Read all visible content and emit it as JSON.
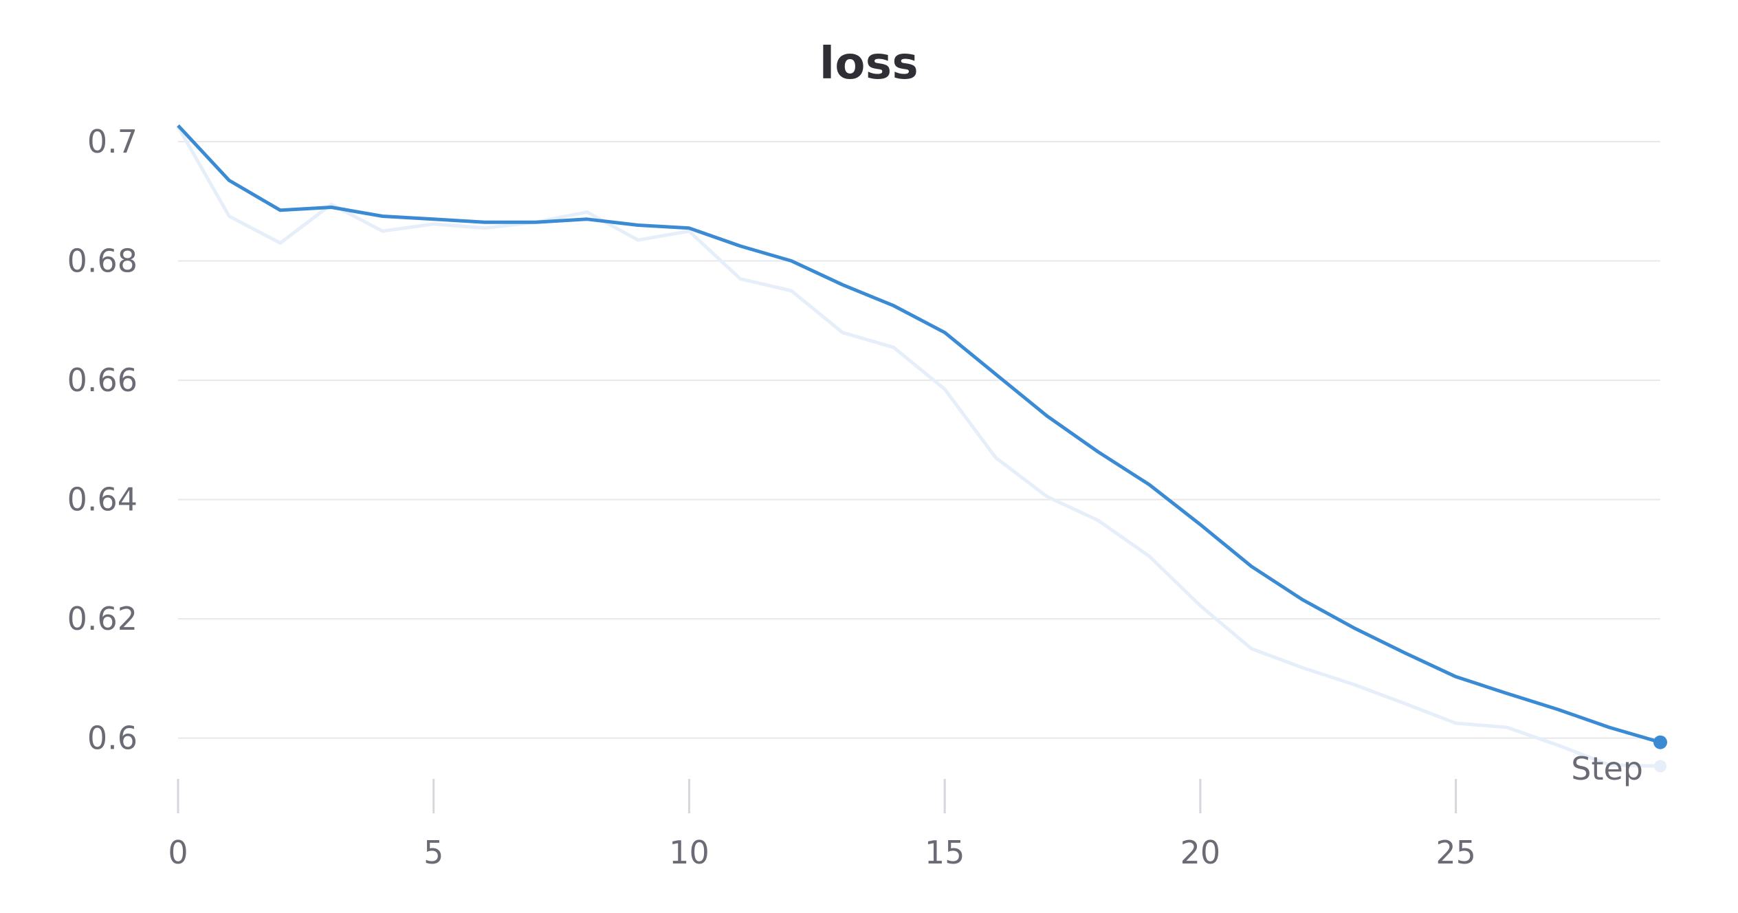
{
  "chart_data": {
    "type": "line",
    "title": "loss",
    "xlabel": "",
    "ylabel": "",
    "xlim": [
      0,
      29
    ],
    "ylim": [
      0.595,
      0.703
    ],
    "x_ticks": [
      0,
      5,
      10,
      15,
      20,
      25
    ],
    "y_ticks": [
      0.6,
      0.62,
      0.64,
      0.66,
      0.68,
      0.7
    ],
    "grid": "horizontal",
    "legend_label": "Step",
    "colors": {
      "smoothed": "#3b8bd4",
      "raw": "#e6eff9",
      "grid": "#e8e8ec",
      "tick": "#d6d6dc",
      "text": "#6b6b76",
      "title": "#2f2f35"
    },
    "series": [
      {
        "role": "raw",
        "x": [
          0,
          1,
          2,
          3,
          4,
          5,
          6,
          7,
          8,
          9,
          10,
          11,
          12,
          13,
          14,
          15,
          16,
          17,
          18,
          19,
          20,
          21,
          22,
          23,
          24,
          25,
          26,
          27,
          28,
          29
        ],
        "values": [
          0.7025,
          0.6875,
          0.683,
          0.6895,
          0.685,
          0.6862,
          0.6855,
          0.6865,
          0.6882,
          0.6835,
          0.685,
          0.677,
          0.675,
          0.668,
          0.6655,
          0.6585,
          0.647,
          0.6405,
          0.6365,
          0.6305,
          0.6222,
          0.615,
          0.6118,
          0.609,
          0.6058,
          0.6025,
          0.6018,
          0.5988,
          0.5955,
          0.5953
        ]
      },
      {
        "role": "smoothed",
        "x": [
          0,
          1,
          2,
          3,
          4,
          5,
          6,
          7,
          8,
          9,
          10,
          11,
          12,
          13,
          14,
          15,
          16,
          17,
          18,
          19,
          20,
          21,
          22,
          23,
          24,
          25,
          26,
          27,
          28,
          29
        ],
        "values": [
          0.7027,
          0.6935,
          0.6885,
          0.689,
          0.6875,
          0.687,
          0.6865,
          0.6865,
          0.687,
          0.686,
          0.6855,
          0.6825,
          0.68,
          0.676,
          0.6725,
          0.668,
          0.661,
          0.654,
          0.648,
          0.6425,
          0.6358,
          0.6288,
          0.6232,
          0.6185,
          0.6143,
          0.6103,
          0.6075,
          0.6048,
          0.6018,
          0.5993
        ]
      }
    ]
  }
}
